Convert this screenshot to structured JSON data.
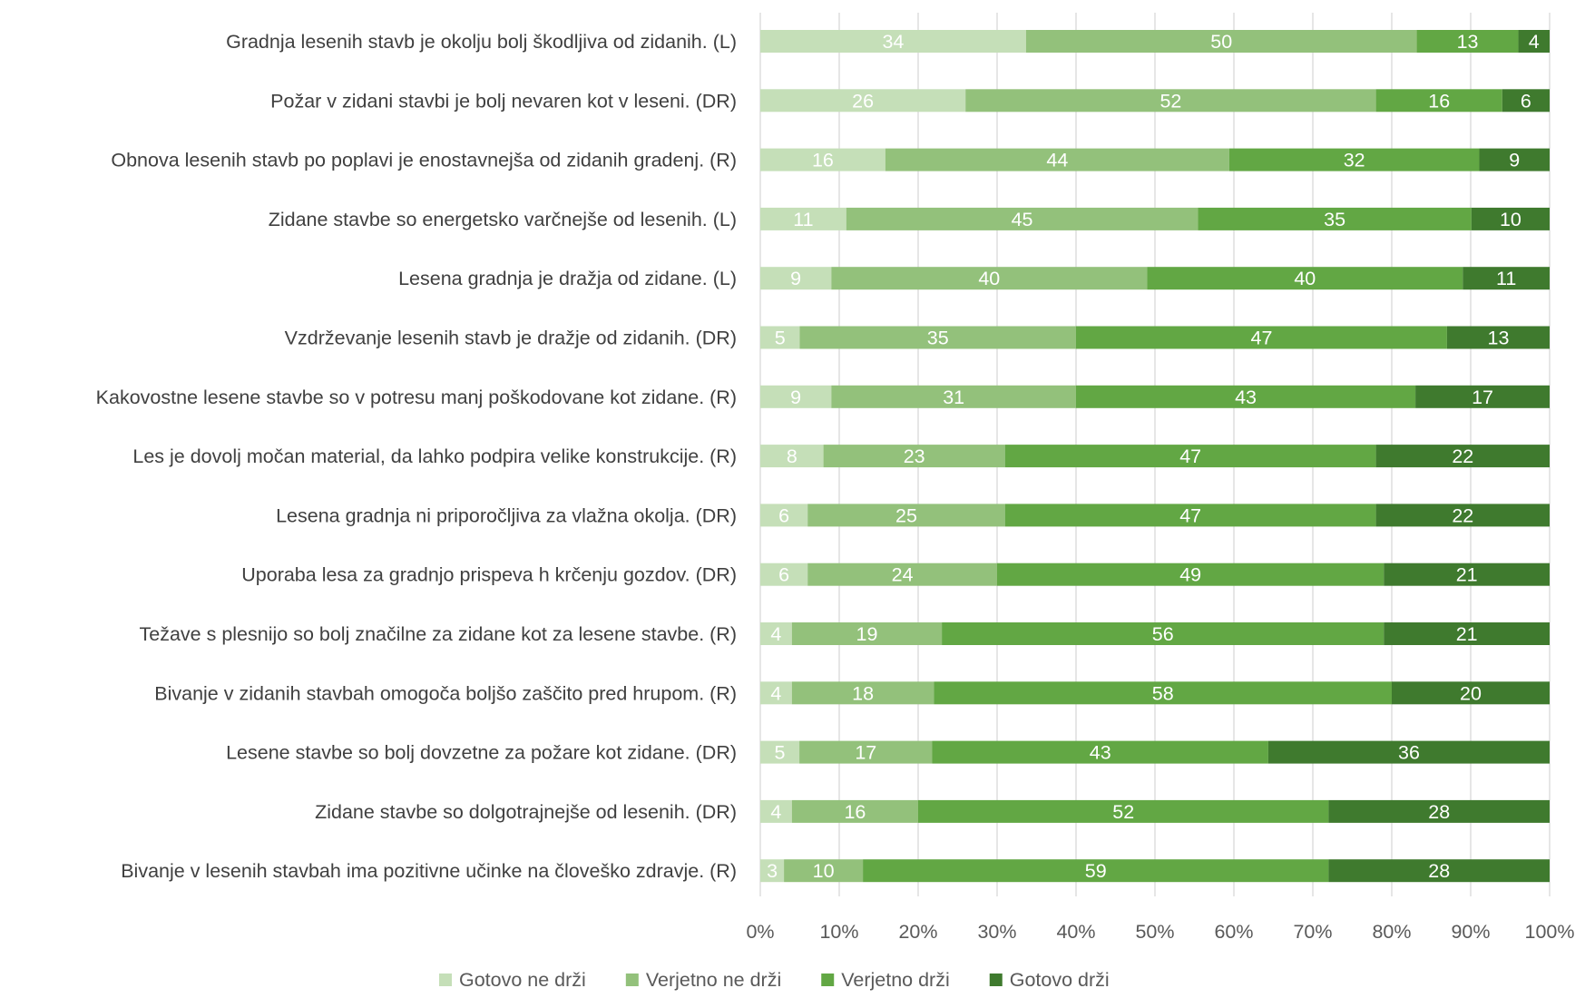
{
  "chart_data": {
    "type": "bar",
    "orientation": "horizontal",
    "stacking": "percent",
    "categories": [
      "Gradnja lesenih stavb je okolju bolj škodljiva od zidanih. (L)",
      "Požar v zidani stavbi je bolj nevaren kot v leseni. (DR)",
      "Obnova lesenih stavb po poplavi je enostavnejša od zidanih gradenj. (R)",
      "Zidane stavbe so energetsko varčnejše od lesenih. (L)",
      "Lesena gradnja je dražja od zidane. (L)",
      "Vzdrževanje lesenih stavb je dražje od zidanih. (DR)",
      "Kakovostne lesene stavbe so v potresu manj poškodovane kot zidane. (R)",
      "Les je dovolj močan material, da lahko podpira velike konstrukcije. (R)",
      "Lesena gradnja ni priporočljiva za vlažna okolja. (DR)",
      "Uporaba lesa za gradnjo prispeva h krčenju gozdov. (DR)",
      "Težave s plesnijo so bolj značilne za zidane kot za lesene stavbe. (R)",
      "Bivanje v zidanih stavbah omogoča boljšo zaščito pred hrupom. (R)",
      "Lesene stavbe so bolj dovzetne za požare kot zidane. (DR)",
      "Zidane stavbe so dolgotrajnejše od lesenih. (DR)",
      "Bivanje v lesenih stavbah ima pozitivne učinke na človeško zdravje. (R)"
    ],
    "series": [
      {
        "name": "Gotovo ne drži",
        "color": "#c5dfb8",
        "values": [
          34,
          26,
          16,
          11,
          9,
          5,
          9,
          8,
          6,
          6,
          4,
          4,
          5,
          4,
          3
        ]
      },
      {
        "name": "Verjetno ne drži",
        "color": "#93c17b",
        "values": [
          50,
          52,
          44,
          45,
          40,
          35,
          31,
          23,
          25,
          24,
          19,
          18,
          17,
          16,
          10
        ]
      },
      {
        "name": "Verjetno drži",
        "color": "#62a744",
        "values": [
          13,
          16,
          32,
          35,
          40,
          47,
          43,
          47,
          47,
          49,
          56,
          58,
          43,
          52,
          59
        ]
      },
      {
        "name": "Gotovo drži",
        "color": "#3f7a2e",
        "values": [
          4,
          6,
          9,
          10,
          11,
          13,
          17,
          22,
          22,
          21,
          21,
          20,
          36,
          28,
          28
        ]
      }
    ],
    "x_ticks": [
      "0%",
      "10%",
      "20%",
      "30%",
      "40%",
      "50%",
      "60%",
      "70%",
      "80%",
      "90%",
      "100%"
    ],
    "xlim": [
      0,
      100
    ],
    "grid": "vertical",
    "legend_position": "bottom",
    "title": "",
    "xlabel": "",
    "ylabel": ""
  }
}
